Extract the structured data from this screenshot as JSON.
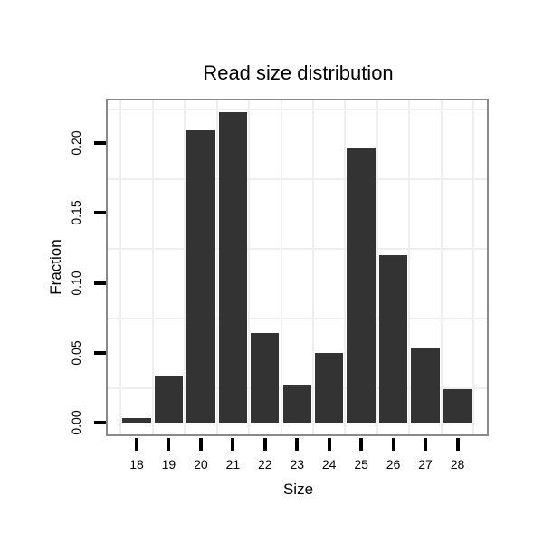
{
  "chart_data": {
    "type": "bar",
    "title": "Read size distribution",
    "xlabel": "Size",
    "ylabel": "Fraction",
    "categories": [
      "18",
      "19",
      "20",
      "21",
      "22",
      "23",
      "24",
      "25",
      "26",
      "27",
      "28"
    ],
    "values": [
      0.003,
      0.034,
      0.209,
      0.222,
      0.064,
      0.027,
      0.05,
      0.197,
      0.12,
      0.054,
      0.024
    ],
    "ylim": [
      0,
      0.231
    ],
    "yticks": {
      "values": [
        0.0,
        0.05,
        0.1,
        0.15,
        0.2
      ],
      "labels": [
        "0.00",
        "0.05",
        "0.10",
        "0.15",
        "0.20"
      ]
    },
    "grid": "minor-only",
    "minor_y_step": 0.025,
    "legend_position": "none",
    "colors": {
      "bar": "#333333",
      "panel_border": "#898989",
      "grid_minor": "#efefef",
      "tick": "#000000",
      "text": "#000000",
      "background": "#ffffff"
    }
  }
}
